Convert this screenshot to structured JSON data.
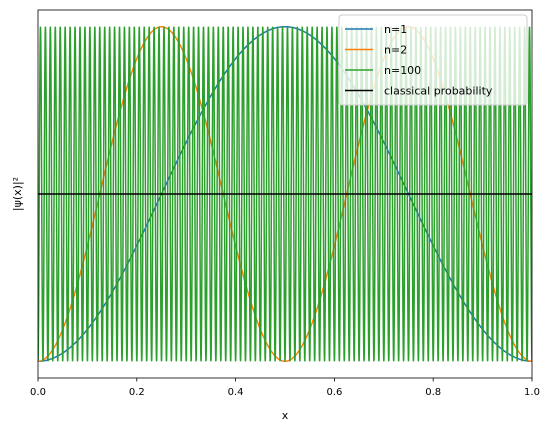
{
  "chart_data": {
    "type": "line",
    "title": "",
    "xlabel": "x",
    "ylabel": "|ψ(x)|²",
    "xlim": [
      0.0,
      1.0
    ],
    "ylim": [
      -0.1,
      2.1
    ],
    "x_ticks": [
      "0.0",
      "0.2",
      "0.4",
      "0.6",
      "0.8",
      "1.0"
    ],
    "y_ticks_visible": false,
    "grid": false,
    "legend_position": "upper right",
    "series": [
      {
        "name": "n=1",
        "color": "#1f77b4",
        "formula": "2*sin(1*pi*x)^2",
        "n": 1
      },
      {
        "name": "n=2",
        "color": "#ff7f0e",
        "formula": "2*sin(2*pi*x)^2",
        "n": 2
      },
      {
        "name": "n=100",
        "color": "#2ca02c",
        "formula": "2*sin(100*pi*x)^2",
        "n": 100
      },
      {
        "name": "classical probability",
        "color": "#000000",
        "constant": 1.0
      }
    ]
  }
}
